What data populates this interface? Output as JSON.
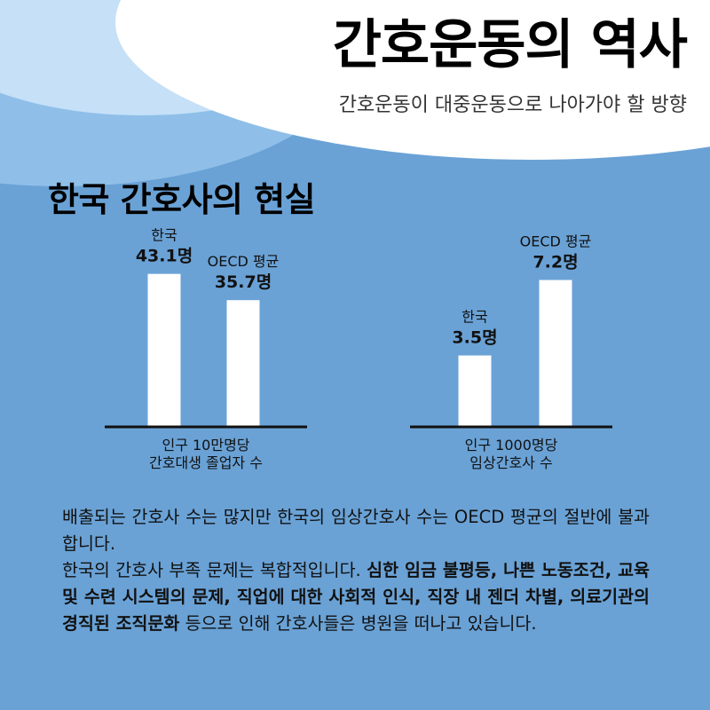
{
  "header": {
    "title": "간호운동의 역사",
    "subtitle": "간호운동이 대중운동으로 나아가야 할 방향"
  },
  "section": {
    "title": "한국 간호사의 현실"
  },
  "colors": {
    "background": "#6aa2d6",
    "header_white": "#ffffff",
    "header_light_blue": "#c5e0f7",
    "header_mid_blue": "#8fbfe8",
    "bar": "#ffffff",
    "axis": "#111111"
  },
  "chart_data": [
    {
      "type": "bar",
      "categories": [
        "한국",
        "OECD 평균"
      ],
      "values": [
        43.1,
        35.7
      ],
      "value_labels": [
        "43.1명",
        "35.7명"
      ],
      "xlabel_lines": [
        "인구 10만명당",
        "간호대생 졸업자 수"
      ],
      "ylim": [
        0,
        50
      ]
    },
    {
      "type": "bar",
      "categories": [
        "한국",
        "OECD 평균"
      ],
      "values": [
        3.5,
        7.2
      ],
      "value_labels": [
        "3.5명",
        "7.2명"
      ],
      "xlabel_lines": [
        "인구 1000명당",
        "임상간호사 수"
      ],
      "ylim": [
        0,
        8.7
      ]
    }
  ],
  "body": {
    "paragraph1": "배출되는 간호사 수는 많지만 한국의 임상간호사 수는 OECD 평균의 절반에 불과합니다.",
    "paragraph2_start": "한국의 간호사 부족 문제는 복합적입니다. ",
    "paragraph2_bold": "심한 임금 불평등, 나쁜 노동조건, 교육 및 수련 시스템의 문제, 직업에 대한 사회적 인식, 직장 내 젠더 차별, 의료기관의 경직된 조직문화",
    "paragraph2_end": " 등으로 인해 간호사들은 병원을 떠나고 있습니다."
  }
}
